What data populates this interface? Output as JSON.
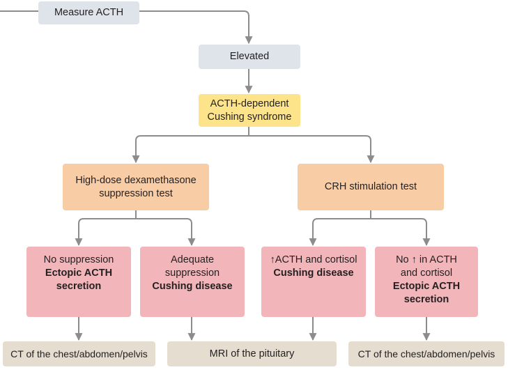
{
  "measure_acth": "Measure ACTH",
  "elevated": "Elevated",
  "acth_dependent": {
    "line1": "ACTH-dependent",
    "line2": "Cushing syndrome"
  },
  "hdd_test": {
    "line1": "High-dose dexamethasone",
    "line2": "suppression test"
  },
  "crh_test": "CRH stimulation test",
  "no_suppression": {
    "line1": "No suppression",
    "line2": "Ectopic ACTH",
    "line3": "secretion"
  },
  "adequate_suppression": {
    "line1": "Adequate",
    "line2": "suppression",
    "line3": "Cushing disease"
  },
  "acth_increase": {
    "line1": "↑ACTH and cortisol",
    "line2": "Cushing disease"
  },
  "no_acth_increase": {
    "line1": "No ↑ in ACTH",
    "line2": "and cortisol",
    "line3": "Ectopic ACTH",
    "line4": "secretion"
  },
  "ct_left": "CT of the chest/abdomen/pelvis",
  "mri": "MRI of the pituitary",
  "ct_right": "CT of the chest/abdomen/pelvis",
  "colors": {
    "gray_box": "#dfe3ea",
    "yellow_box": "#fde38a",
    "peach_box": "#f8cda5",
    "pink_box": "#f2b5ba",
    "tan_box": "#e6ddd1",
    "connector": "#8c8c8c"
  }
}
